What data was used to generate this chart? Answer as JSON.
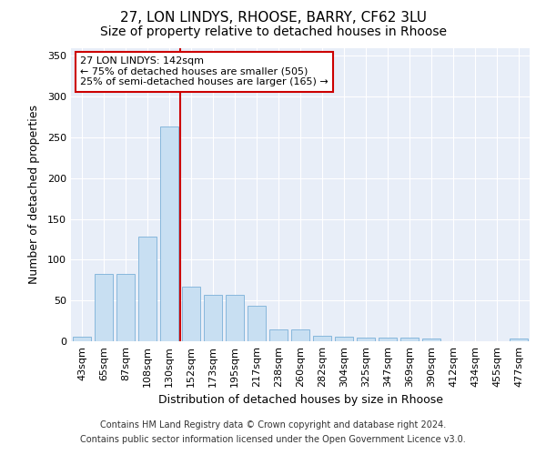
{
  "title1": "27, LON LINDYS, RHOOSE, BARRY, CF62 3LU",
  "title2": "Size of property relative to detached houses in Rhoose",
  "xlabel": "Distribution of detached houses by size in Rhoose",
  "ylabel": "Number of detached properties",
  "categories": [
    "43sqm",
    "65sqm",
    "87sqm",
    "108sqm",
    "130sqm",
    "152sqm",
    "173sqm",
    "195sqm",
    "217sqm",
    "238sqm",
    "260sqm",
    "282sqm",
    "304sqm",
    "325sqm",
    "347sqm",
    "369sqm",
    "390sqm",
    "412sqm",
    "434sqm",
    "455sqm",
    "477sqm"
  ],
  "values": [
    6,
    83,
    83,
    128,
    263,
    67,
    57,
    57,
    44,
    14,
    14,
    7,
    6,
    5,
    5,
    4,
    3,
    0,
    0,
    0,
    3
  ],
  "bar_color": "#c8dff2",
  "bar_edge_color": "#7ab0d8",
  "vline_x": 4.5,
  "vline_color": "#cc0000",
  "annotation_text": "27 LON LINDYS: 142sqm\n← 75% of detached houses are smaller (505)\n25% of semi-detached houses are larger (165) →",
  "ylim": [
    0,
    360
  ],
  "yticks": [
    0,
    50,
    100,
    150,
    200,
    250,
    300,
    350
  ],
  "footer1": "Contains HM Land Registry data © Crown copyright and database right 2024.",
  "footer2": "Contains public sector information licensed under the Open Government Licence v3.0.",
  "bg_color": "#e8eef8",
  "title1_fontsize": 11,
  "title2_fontsize": 10,
  "axis_label_fontsize": 9,
  "tick_fontsize": 8,
  "annotation_fontsize": 8,
  "footer_fontsize": 7
}
